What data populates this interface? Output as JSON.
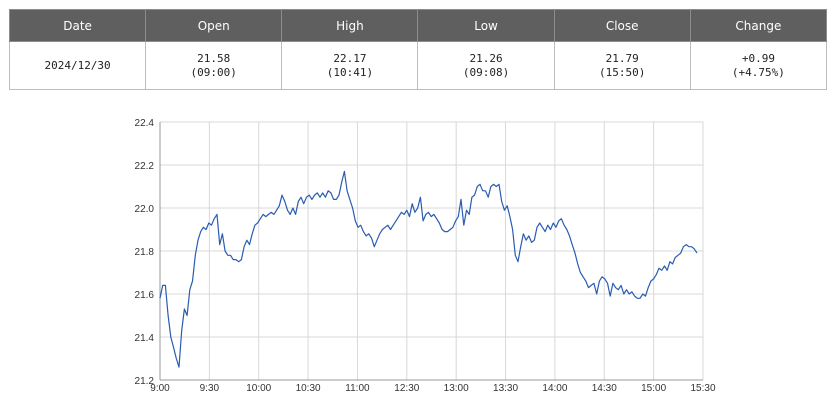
{
  "table": {
    "headers": [
      "Date",
      "Open",
      "High",
      "Low",
      "Close",
      "Change"
    ],
    "row": [
      {
        "main": "2024/12/30",
        "sub": ""
      },
      {
        "main": "21.58",
        "sub": "(09:00)"
      },
      {
        "main": "22.17",
        "sub": "(10:41)"
      },
      {
        "main": "21.26",
        "sub": "(09:08)"
      },
      {
        "main": "21.79",
        "sub": "(15:50)"
      },
      {
        "main": "+0.99",
        "sub": "(+4.75%)"
      }
    ]
  },
  "colors": {
    "line": "#2a5cb0",
    "grid": "#d8d8d8",
    "axis": "#999999",
    "header_bg": "#5f5f5f"
  },
  "chart_data": {
    "type": "line",
    "title": "",
    "xlabel": "",
    "ylabel": "",
    "x_ticks": [
      "9:00",
      "9:30",
      "10:00",
      "10:30",
      "11:00",
      "12:30",
      "13:00",
      "13:30",
      "14:00",
      "14:30",
      "15:00",
      "15:30"
    ],
    "y_ticks": [
      "21.2",
      "21.4",
      "21.6",
      "21.8",
      "22.0",
      "22.2",
      "22.4"
    ],
    "ylim": [
      21.2,
      22.4
    ],
    "grid": true,
    "legend": "none",
    "series": [
      {
        "values": [
          21.58,
          21.64,
          21.64,
          21.5,
          21.4,
          21.35,
          21.3,
          21.26,
          21.43,
          21.53,
          21.5,
          21.62,
          21.66,
          21.78,
          21.85,
          21.89,
          21.91,
          21.9,
          21.93,
          21.92,
          21.95,
          21.97,
          21.83,
          21.88,
          21.8,
          21.78,
          21.78,
          21.76,
          21.76,
          21.75,
          21.76,
          21.82,
          21.85,
          21.83,
          21.88,
          21.92,
          21.93,
          21.95,
          21.97,
          21.96,
          21.97,
          21.98,
          21.97,
          21.99,
          22.01,
          22.06,
          22.03,
          21.99,
          21.97,
          22.0,
          21.97,
          22.03,
          22.05,
          22.02,
          22.05,
          22.06,
          22.04,
          22.06,
          22.07,
          22.05,
          22.07,
          22.05,
          22.08,
          22.07,
          22.04,
          22.04,
          22.06,
          22.12,
          22.17,
          22.08,
          22.04,
          22.0,
          21.94,
          21.91,
          21.92,
          21.89,
          21.87,
          21.88,
          21.86,
          21.82,
          21.85,
          21.88,
          21.9,
          21.91,
          21.92,
          21.9,
          21.92,
          21.94,
          21.96,
          21.98,
          21.97,
          21.99,
          21.96,
          22.02,
          21.98,
          22.0,
          22.05,
          21.94,
          21.97,
          21.98,
          21.96,
          21.97,
          21.95,
          21.93,
          21.9,
          21.89,
          21.89,
          21.9,
          21.91,
          21.94,
          21.96,
          22.04,
          21.92,
          21.99,
          21.97,
          22.05,
          22.06,
          22.1,
          22.11,
          22.08,
          22.08,
          22.05,
          22.1,
          22.11,
          22.1,
          22.11,
          22.03,
          21.99,
          22.01,
          21.96,
          21.9,
          21.78,
          21.75,
          21.82,
          21.88,
          21.85,
          21.87,
          21.84,
          21.85,
          21.91,
          21.93,
          21.91,
          21.89,
          21.92,
          21.9,
          21.93,
          21.91,
          21.94,
          21.95,
          21.92,
          21.9,
          21.87,
          21.83,
          21.79,
          21.74,
          21.7,
          21.68,
          21.66,
          21.63,
          21.64,
          21.65,
          21.6,
          21.66,
          21.68,
          21.67,
          21.65,
          21.59,
          21.65,
          21.63,
          21.62,
          21.64,
          21.6,
          21.62,
          21.6,
          21.61,
          21.59,
          21.58,
          21.58,
          21.6,
          21.59,
          21.63,
          21.66,
          21.67,
          21.69,
          21.72,
          21.71,
          21.73,
          21.71,
          21.75,
          21.74,
          21.77,
          21.78,
          21.79,
          21.82,
          21.83,
          21.82,
          21.82,
          21.81,
          21.79
        ]
      }
    ]
  }
}
